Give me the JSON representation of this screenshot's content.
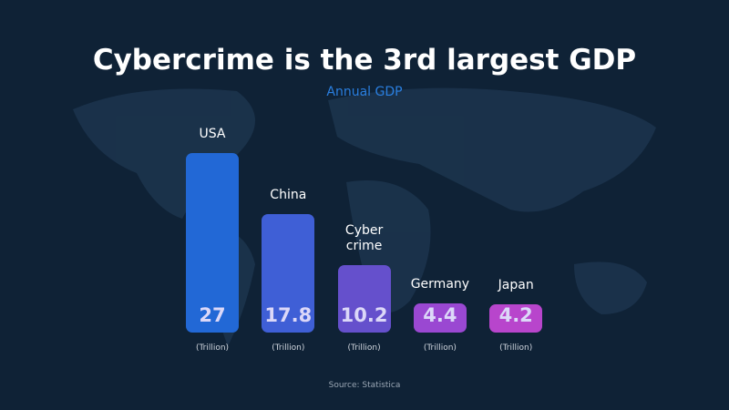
{
  "chart_data": {
    "type": "bar",
    "title": "Cybercrime is the 3rd largest GDP",
    "subtitle": "Annual GDP",
    "categories": [
      "USA",
      "China",
      "Cyber crime",
      "Germany",
      "Japan"
    ],
    "values": [
      27,
      17.8,
      10.2,
      4.4,
      4.2
    ],
    "colors": [
      "#2268d6",
      "#3f5fd6",
      "#6550cc",
      "#9a48d2",
      "#b845cc"
    ],
    "unit_label": "(Trillion)",
    "source": "Source: Statistica"
  }
}
